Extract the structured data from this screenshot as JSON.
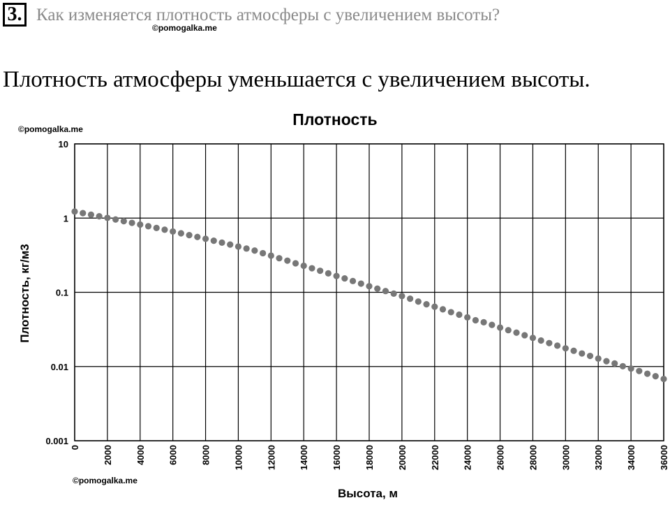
{
  "question": {
    "number": "3.",
    "text": "Как изменяется плотность атмосферы с увеличением высоты?"
  },
  "watermarks": [
    "©pomogalka.me",
    "©pomogalka.me",
    "©pomogalka.me"
  ],
  "answer": "Плотность атмосферы уменьшается с увеличением высоты.",
  "chart_data": {
    "type": "scatter",
    "title": "Плотность",
    "xlabel": "Высота, м",
    "ylabel": "Плотность, кг/м3",
    "xlim": [
      0,
      36000
    ],
    "ylim": [
      0.001,
      10
    ],
    "yscale": "log",
    "grid": true,
    "marker_color": "#777777",
    "x_ticks": [
      "0",
      "2000",
      "4000",
      "6000",
      "8000",
      "10000",
      "12000",
      "14000",
      "16000",
      "18000",
      "20000",
      "22000",
      "24000",
      "26000",
      "28000",
      "30000",
      "32000",
      "34000",
      "36000"
    ],
    "y_ticks": [
      "10",
      "1",
      "0.1",
      "0.01",
      "0.001"
    ],
    "series": [
      {
        "x": [
          0,
          500,
          1000,
          1500,
          2000,
          2500,
          3000,
          3500,
          4000,
          4500,
          5000,
          5500,
          6000,
          6500,
          7000,
          7500,
          8000,
          8500,
          9000,
          9500,
          10000,
          10500,
          11000,
          11500,
          12000,
          12500,
          13000,
          13500,
          14000,
          14500,
          15000,
          15500,
          16000,
          16500,
          17000,
          17500,
          18000,
          18500,
          19000,
          19500,
          20000,
          20500,
          21000,
          21500,
          22000,
          22500,
          23000,
          23500,
          24000,
          24500,
          25000,
          25500,
          26000,
          26500,
          27000,
          27500,
          28000,
          28500,
          29000,
          29500,
          30000,
          30500,
          31000,
          31500,
          32000,
          32500,
          33000,
          33500,
          34000,
          34500,
          35000,
          35500,
          36000
        ],
        "y": [
          1.225,
          1.167,
          1.112,
          1.058,
          1.007,
          0.957,
          0.909,
          0.863,
          0.819,
          0.777,
          0.736,
          0.697,
          0.66,
          0.624,
          0.59,
          0.557,
          0.526,
          0.496,
          0.467,
          0.44,
          0.414,
          0.389,
          0.365,
          0.337,
          0.312,
          0.288,
          0.267,
          0.246,
          0.228,
          0.211,
          0.195,
          0.18,
          0.166,
          0.154,
          0.142,
          0.131,
          0.121,
          0.112,
          0.104,
          0.096,
          0.089,
          0.082,
          0.075,
          0.069,
          0.064,
          0.059,
          0.054,
          0.05,
          0.046,
          0.042,
          0.0395,
          0.0364,
          0.0335,
          0.0309,
          0.0286,
          0.0264,
          0.0243,
          0.0224,
          0.0207,
          0.0191,
          0.0176,
          0.0163,
          0.015,
          0.0139,
          0.0128,
          0.0118,
          0.011,
          0.0101,
          0.0094,
          0.0087,
          0.008,
          0.0074,
          0.0068
        ]
      }
    ]
  }
}
